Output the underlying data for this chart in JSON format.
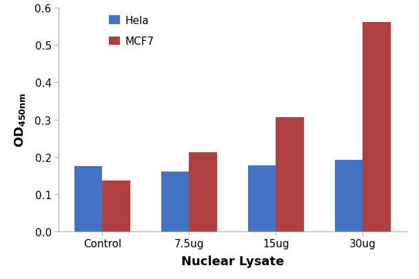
{
  "categories": [
    "Control",
    "7.5ug",
    "15ug",
    "30ug"
  ],
  "hela_values": [
    0.175,
    0.16,
    0.178,
    0.193
  ],
  "mcf7_values": [
    0.137,
    0.213,
    0.307,
    0.562
  ],
  "hela_color": "#4472C4",
  "mcf7_color": "#B04040",
  "xlabel": "Nuclear Lysate",
  "ylim": [
    0,
    0.6
  ],
  "yticks": [
    0,
    0.1,
    0.2,
    0.3,
    0.4,
    0.5,
    0.6
  ],
  "legend_labels": [
    "Hela",
    "MCF7"
  ],
  "bar_width": 0.32,
  "background_color": "#ffffff",
  "plot_bg_color": "#ffffff",
  "spine_color": "#aaaaaa",
  "tick_color": "#aaaaaa"
}
